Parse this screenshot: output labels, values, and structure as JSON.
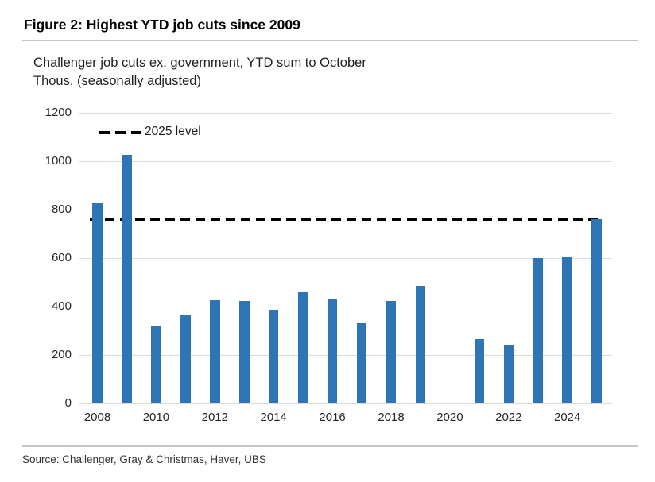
{
  "figure": {
    "title": "Figure 2: Highest YTD job cuts since 2009",
    "subtitle_line1": "Challenger job cuts ex. government, YTD sum to October",
    "subtitle_line2": "Thous. (seasonally adjusted)",
    "source": "Source: Challenger, Gray & Christmas, Haver, UBS"
  },
  "legend": {
    "label": "2025 level"
  },
  "colors": {
    "bar": "#2E75B6",
    "reference_line": "#000000",
    "gridline": "#dcdcdc"
  },
  "chart_data": {
    "type": "bar",
    "title": "Challenger job cuts ex. government, YTD sum to October",
    "ylabel": "Thous. (seasonally adjusted)",
    "xlabel": "",
    "categories": [
      2008,
      2009,
      2010,
      2011,
      2012,
      2013,
      2014,
      2015,
      2016,
      2017,
      2018,
      2019,
      2020,
      2021,
      2022,
      2023,
      2024,
      2025
    ],
    "values": [
      825,
      1025,
      320,
      365,
      425,
      422,
      388,
      460,
      430,
      330,
      423,
      485,
      null,
      265,
      240,
      600,
      602,
      760
    ],
    "ylim": [
      0,
      1200
    ],
    "yticks": [
      0,
      200,
      400,
      600,
      800,
      1000,
      1200
    ],
    "xticks": [
      2008,
      2010,
      2012,
      2014,
      2016,
      2018,
      2020,
      2022,
      2024
    ],
    "grid": "horizontal",
    "legend_position": "top-left",
    "reference_line": {
      "label": "2025 level",
      "value": 760,
      "style": "dashed",
      "color": "#000000"
    }
  }
}
